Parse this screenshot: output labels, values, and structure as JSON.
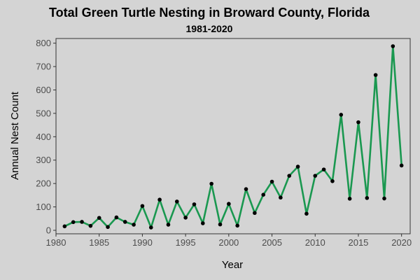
{
  "chart_data": {
    "type": "line",
    "title": "Total Green Turtle Nesting in Broward County, Florida",
    "subtitle": "1981-2020",
    "xlabel": "Year",
    "ylabel": "Annual Nest Count",
    "xlim": [
      1980,
      2021
    ],
    "ylim": [
      -15,
      820
    ],
    "xticks": [
      1980,
      1985,
      1990,
      1995,
      2000,
      2005,
      2010,
      2015,
      2020
    ],
    "yticks": [
      0,
      100,
      200,
      300,
      400,
      500,
      600,
      700,
      800
    ],
    "grid": false,
    "legend": "none",
    "line_color": "#1a9850",
    "point_color": "#000000",
    "series": [
      {
        "x": [
          1981,
          1982,
          1983,
          1984,
          1985,
          1986,
          1987,
          1988,
          1989,
          1990,
          1991,
          1992,
          1993,
          1994,
          1995,
          1996,
          1997,
          1998,
          1999,
          2000,
          2001,
          2002,
          2003,
          2004,
          2005,
          2006,
          2007,
          2008,
          2009,
          2010,
          2011,
          2012,
          2013,
          2014,
          2015,
          2016,
          2017,
          2018,
          2019,
          2020
        ],
        "values": [
          17,
          35,
          36,
          19,
          53,
          14,
          55,
          36,
          24,
          104,
          12,
          131,
          24,
          123,
          54,
          111,
          30,
          199,
          25,
          113,
          20,
          176,
          74,
          152,
          208,
          140,
          233,
          272,
          71,
          233,
          260,
          210,
          494,
          135,
          462,
          138,
          664,
          136,
          787,
          277
        ]
      }
    ]
  }
}
